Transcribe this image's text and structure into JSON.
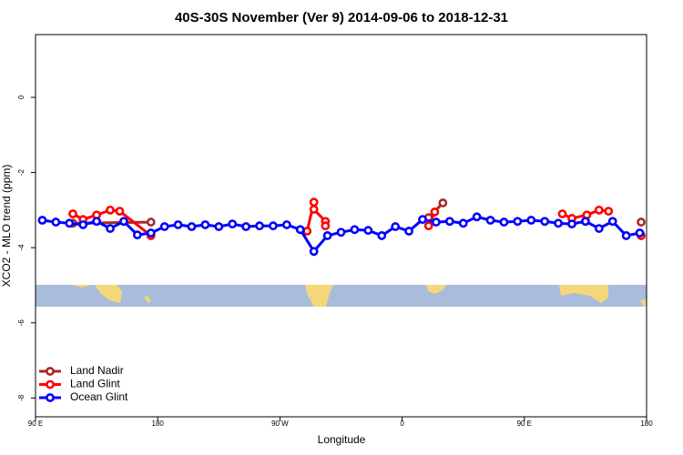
{
  "chart_data": {
    "type": "line",
    "title": "40S-30S November (Ver 9)   2014-09-06 to 2018-12-31",
    "x_label": "Longitude",
    "y_label": "XCO2 - MLO trend (ppm)",
    "xlim": [
      90,
      540
    ],
    "ylim": [
      -8.5,
      1.67
    ],
    "xticks": [
      {
        "value": 90,
        "label": "90 E"
      },
      180,
      {
        "value": 270,
        "label": "90 W"
      },
      {
        "value": 360,
        "label": "0"
      },
      {
        "value": 450,
        "label": "90 E"
      },
      {
        "value": 540,
        "label": "180"
      }
    ],
    "yticks": [
      0,
      -2,
      -4,
      -6,
      -8
    ],
    "legend": "bottom-left",
    "series": [
      {
        "name": "Land Nadir",
        "color": "#a52a2a",
        "x": [
          117.5,
          175,
          null,
          379.5,
          390,
          null,
          536
        ],
        "values": [
          -3.35,
          -3.32,
          null,
          -3.2,
          -2.81,
          null,
          -3.32
        ]
      },
      {
        "name": "Land Glint",
        "color": "#ff0000",
        "x": [
          117.5,
          125,
          135,
          145,
          152,
          175,
          null,
          290,
          295,
          295,
          303.5,
          303.5,
          null,
          379.5,
          384,
          null,
          478,
          485,
          496,
          505,
          512,
          null,
          536
        ],
        "values": [
          -3.1,
          -3.25,
          -3.13,
          -3.0,
          -3.03,
          -3.68,
          null,
          -3.56,
          -2.79,
          -2.98,
          -3.3,
          -3.42,
          null,
          -3.42,
          -3.05,
          null,
          -3.1,
          -3.22,
          -3.13,
          -3.0,
          -3.03,
          null,
          -3.68
        ]
      },
      {
        "name": "Ocean Glint",
        "color": "#0000ff",
        "x": [
          95,
          105,
          115,
          125,
          135,
          145,
          155,
          165,
          175,
          185,
          195,
          205,
          215,
          225,
          235,
          245,
          255,
          265,
          275,
          285,
          295,
          305,
          315,
          325,
          335,
          345,
          355,
          365,
          375,
          385,
          395,
          405,
          415,
          425,
          435,
          445,
          455,
          465,
          475,
          485,
          495,
          505,
          515,
          525,
          535
        ],
        "values": [
          -3.27,
          -3.32,
          -3.35,
          -3.39,
          -3.3,
          -3.49,
          -3.3,
          -3.66,
          -3.61,
          -3.44,
          -3.39,
          -3.44,
          -3.39,
          -3.44,
          -3.37,
          -3.44,
          -3.42,
          -3.42,
          -3.39,
          -3.52,
          -4.1,
          -3.68,
          -3.59,
          -3.52,
          -3.54,
          -3.68,
          -3.44,
          -3.56,
          -3.25,
          -3.32,
          -3.3,
          -3.35,
          -3.18,
          -3.27,
          -3.32,
          -3.3,
          -3.27,
          -3.3,
          -3.35,
          -3.37,
          -3.3,
          -3.49,
          -3.3,
          -3.68,
          -3.61
        ]
      }
    ]
  }
}
